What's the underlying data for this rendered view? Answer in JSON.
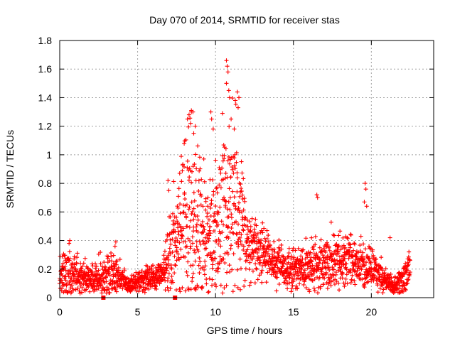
{
  "chart_data": {
    "type": "scatter",
    "title": "Day 070 of 2014, SRMTID for receiver stas",
    "xlabel": "GPS time / hours",
    "ylabel": "SRMTID / TECUs",
    "xlim": [
      0,
      24
    ],
    "ylim": [
      0,
      1.8
    ],
    "xticks": [
      0,
      5,
      10,
      15,
      20
    ],
    "xtick_labels": [
      "0",
      "5",
      "10",
      "15",
      "20"
    ],
    "yticks": [
      0,
      0.2,
      0.4,
      0.6,
      0.8,
      1.0,
      1.2,
      1.4,
      1.6,
      1.8
    ],
    "ytick_labels": [
      "0",
      "0.2",
      "0.4",
      "0.6",
      "0.8",
      "1",
      "1.2",
      "1.4",
      "1.6",
      "1.8"
    ],
    "grid": true,
    "marker": "plus",
    "color": "#ff0000",
    "envelope": {
      "x": [
        0.0,
        0.5,
        1.0,
        1.5,
        2.0,
        2.5,
        3.0,
        3.5,
        4.0,
        4.5,
        5.0,
        5.5,
        6.0,
        6.5,
        7.0,
        7.5,
        8.0,
        8.5,
        9.0,
        9.5,
        10.0,
        10.5,
        11.0,
        11.5,
        12.0,
        12.5,
        13.0,
        13.5,
        14.0,
        14.5,
        15.0,
        15.5,
        16.0,
        16.5,
        17.0,
        17.5,
        18.0,
        18.5,
        19.0,
        19.5,
        20.0,
        20.5,
        21.0,
        21.5,
        22.0,
        22.5
      ],
      "mean": [
        0.16,
        0.17,
        0.15,
        0.15,
        0.16,
        0.13,
        0.14,
        0.18,
        0.13,
        0.09,
        0.11,
        0.13,
        0.14,
        0.16,
        0.25,
        0.4,
        0.58,
        0.62,
        0.48,
        0.32,
        0.45,
        0.62,
        0.68,
        0.55,
        0.4,
        0.35,
        0.32,
        0.28,
        0.25,
        0.22,
        0.2,
        0.2,
        0.22,
        0.24,
        0.25,
        0.26,
        0.28,
        0.26,
        0.22,
        0.24,
        0.2,
        0.17,
        0.12,
        0.08,
        0.13,
        0.18
      ],
      "spread": [
        0.07,
        0.09,
        0.07,
        0.07,
        0.06,
        0.06,
        0.07,
        0.09,
        0.05,
        0.03,
        0.03,
        0.04,
        0.04,
        0.05,
        0.12,
        0.18,
        0.28,
        0.3,
        0.25,
        0.18,
        0.26,
        0.3,
        0.32,
        0.25,
        0.12,
        0.1,
        0.09,
        0.08,
        0.07,
        0.07,
        0.06,
        0.07,
        0.08,
        0.1,
        0.09,
        0.1,
        0.1,
        0.09,
        0.08,
        0.08,
        0.07,
        0.06,
        0.04,
        0.03,
        0.06,
        0.08
      ],
      "samples_per_hour": 95
    },
    "outliers": [
      {
        "x": 0.65,
        "y": 0.4
      },
      {
        "x": 0.6,
        "y": 0.38
      },
      {
        "x": 3.6,
        "y": 0.39
      },
      {
        "x": 3.55,
        "y": 0.36
      },
      {
        "x": 6.95,
        "y": 0.82
      },
      {
        "x": 7.0,
        "y": 0.75
      },
      {
        "x": 8.3,
        "y": 1.28
      },
      {
        "x": 8.45,
        "y": 1.31
      },
      {
        "x": 8.55,
        "y": 1.3
      },
      {
        "x": 8.7,
        "y": 1.2
      },
      {
        "x": 8.2,
        "y": 1.25
      },
      {
        "x": 8.6,
        "y": 1.15
      },
      {
        "x": 8.4,
        "y": 1.22
      },
      {
        "x": 9.7,
        "y": 1.3
      },
      {
        "x": 9.75,
        "y": 1.25
      },
      {
        "x": 9.85,
        "y": 1.18
      },
      {
        "x": 10.7,
        "y": 1.66
      },
      {
        "x": 10.75,
        "y": 1.62
      },
      {
        "x": 10.8,
        "y": 1.58
      },
      {
        "x": 10.7,
        "y": 1.5
      },
      {
        "x": 10.85,
        "y": 1.45
      },
      {
        "x": 10.9,
        "y": 1.4
      },
      {
        "x": 11.4,
        "y": 1.44
      },
      {
        "x": 11.5,
        "y": 1.4
      },
      {
        "x": 11.45,
        "y": 1.33
      },
      {
        "x": 11.0,
        "y": 1.25
      },
      {
        "x": 11.2,
        "y": 1.18
      },
      {
        "x": 16.5,
        "y": 0.72
      },
      {
        "x": 16.55,
        "y": 0.7
      },
      {
        "x": 19.6,
        "y": 0.8
      },
      {
        "x": 19.65,
        "y": 0.76
      },
      {
        "x": 19.55,
        "y": 0.67
      },
      {
        "x": 19.7,
        "y": 0.64
      },
      {
        "x": 21.2,
        "y": 0.42
      }
    ],
    "zero_points": [
      {
        "x": 2.8,
        "y": 0.0
      },
      {
        "x": 7.4,
        "y": 0.0
      }
    ]
  }
}
